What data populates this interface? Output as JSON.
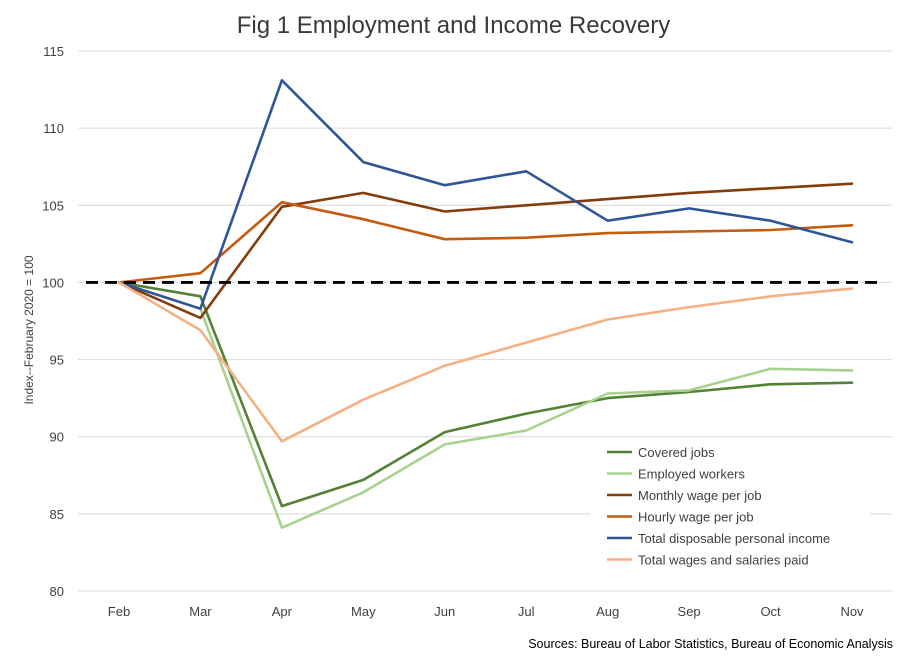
{
  "chart_data": {
    "type": "line",
    "title": "Fig 1 Employment and Income Recovery",
    "ylabel": "Index--February 2020 = 100",
    "xlabel": "",
    "source": "Sources: Bureau of Labor Statistics, Bureau of Economic Analysis",
    "categories": [
      "Feb",
      "Mar",
      "Apr",
      "May",
      "Jun",
      "Jul",
      "Aug",
      "Sep",
      "Oct",
      "Nov"
    ],
    "ylim": [
      80,
      115
    ],
    "yticks": [
      80,
      85,
      90,
      95,
      100,
      105,
      110,
      115
    ],
    "grid": true,
    "legend_position": "bottom-right",
    "reference_line": {
      "value": 100,
      "style": "dashed",
      "color": "#000000"
    },
    "series": [
      {
        "name": "Covered jobs",
        "color": "#538135",
        "values": [
          100,
          99.1,
          85.5,
          87.2,
          90.3,
          91.5,
          92.5,
          92.9,
          93.4,
          93.5
        ]
      },
      {
        "name": "Employed workers",
        "color": "#a9d18e",
        "values": [
          100,
          98.3,
          84.1,
          86.4,
          89.5,
          90.4,
          92.8,
          93.0,
          94.4,
          94.3
        ]
      },
      {
        "name": "Monthly wage per job",
        "color": "#843c0c",
        "values": [
          100,
          97.7,
          104.9,
          105.8,
          104.6,
          105.0,
          105.4,
          105.8,
          106.1,
          106.4
        ]
      },
      {
        "name": "Hourly wage per job",
        "color": "#c55a11",
        "values": [
          100,
          100.6,
          105.2,
          104.1,
          102.8,
          102.9,
          103.2,
          103.3,
          103.4,
          103.7
        ]
      },
      {
        "name": "Total disposable personal income",
        "color": "#2f5597",
        "values": [
          100,
          98.3,
          113.1,
          107.8,
          106.3,
          107.2,
          104.0,
          104.8,
          104.0,
          102.6
        ]
      },
      {
        "name": "Total wages and salaries paid",
        "color": "#f4b183",
        "values": [
          100,
          96.9,
          89.7,
          92.4,
          94.6,
          96.1,
          97.6,
          98.4,
          99.1,
          99.6
        ]
      }
    ]
  }
}
